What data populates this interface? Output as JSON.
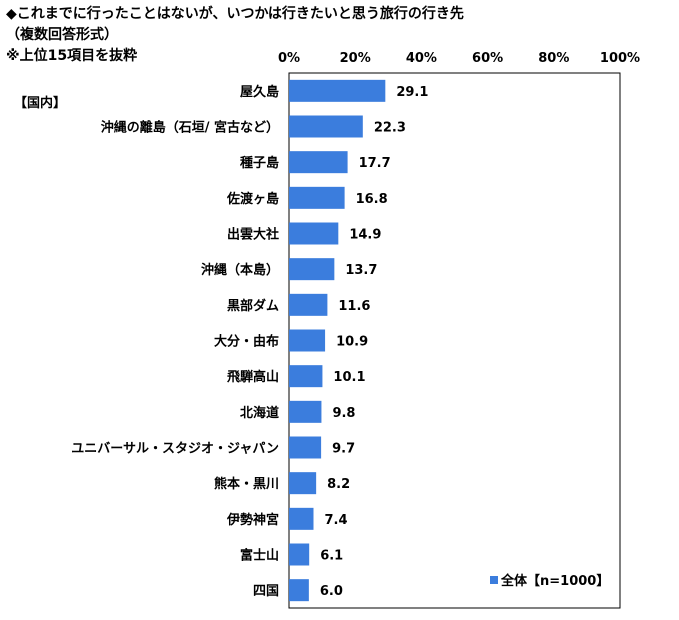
{
  "header": {
    "title": "◆これまでに行ったことはないが、いつかは行きたいと思う旅行の行き先",
    "subtitle": "（複数回答形式）",
    "note": "※上位15項目を抜粋"
  },
  "section_label": "【国内】",
  "legend": {
    "label": "全体【n=1000】"
  },
  "colors": {
    "bar": "#3b7ddd",
    "axis": "#000000",
    "grid_frame": "#000000"
  },
  "chart_data": {
    "type": "bar",
    "orientation": "horizontal",
    "title": "◆これまでに行ったことはないが、いつかは行きたいと思う旅行の行き先",
    "categories": [
      "屋久島",
      "沖縄の離島（石垣/ 宮古など）",
      "種子島",
      "佐渡ヶ島",
      "出雲大社",
      "沖縄（本島）",
      "黒部ダム",
      "大分・由布",
      "飛騨高山",
      "北海道",
      "ユニバーサル・スタジオ・ジャパン",
      "熊本・黒川",
      "伊勢神宮",
      "富士山",
      "四国"
    ],
    "series": [
      {
        "name": "全体【n=1000】",
        "values": [
          29.1,
          22.3,
          17.7,
          16.8,
          14.9,
          13.7,
          11.6,
          10.9,
          10.1,
          9.8,
          9.7,
          8.2,
          7.4,
          6.1,
          6.0
        ]
      }
    ],
    "value_labels": [
      "29.1",
      "22.3",
      "17.7",
      "16.8",
      "14.9",
      "13.7",
      "11.6",
      "10.9",
      "10.1",
      "9.8",
      "9.7",
      "8.2",
      "7.4",
      "6.1",
      "6.0"
    ],
    "x_ticks": [
      "0%",
      "20%",
      "40%",
      "60%",
      "80%",
      "100%"
    ],
    "xlim": [
      0,
      100
    ],
    "grid": false,
    "legend_position": "bottom-right"
  }
}
